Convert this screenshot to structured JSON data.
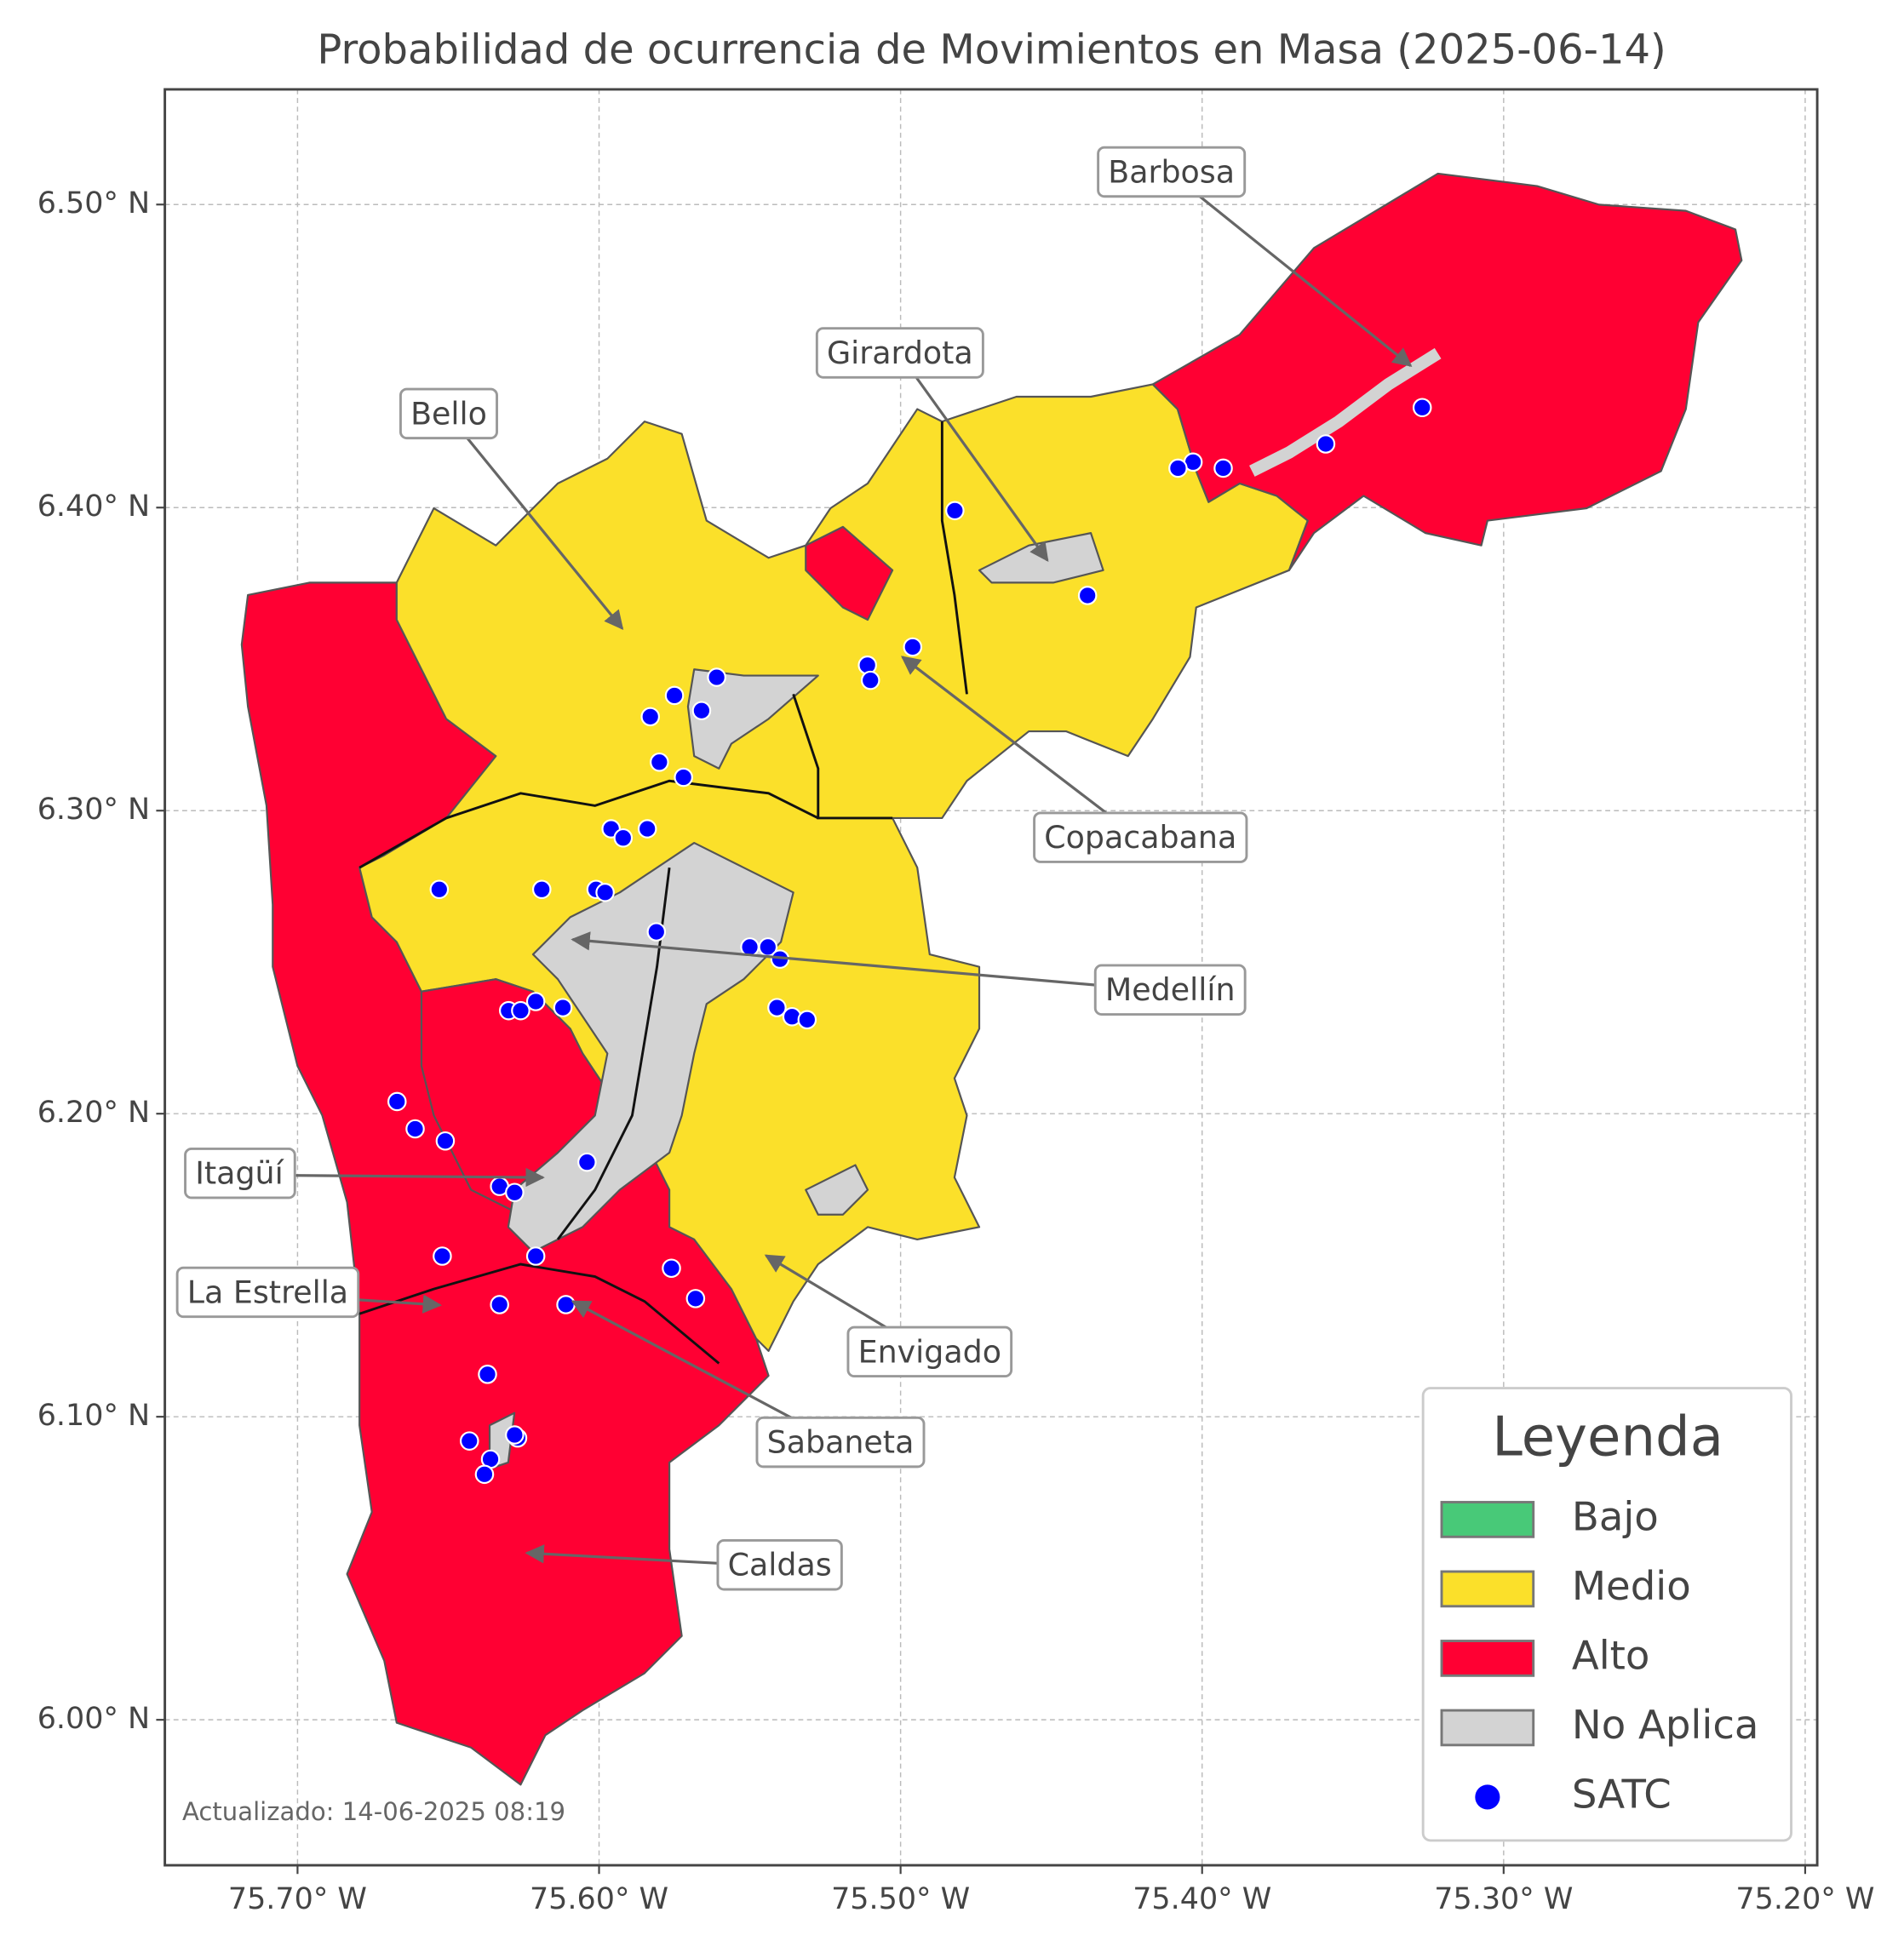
{
  "title": "Probabilidad de ocurrencia de Movimientos en Masa (2025-06-14)",
  "xlim": [
    -75.744,
    -75.196
  ],
  "ylim": [
    5.952,
    6.538
  ],
  "xticks": [
    {
      "value": -75.7,
      "label": "75.70° W"
    },
    {
      "value": -75.6,
      "label": "75.60° W"
    },
    {
      "value": -75.5,
      "label": "75.50° W"
    },
    {
      "value": -75.4,
      "label": "75.40° W"
    },
    {
      "value": -75.3,
      "label": "75.30° W"
    },
    {
      "value": -75.2,
      "label": "75.20° W"
    }
  ],
  "yticks": [
    {
      "value": 6.0,
      "label": "6.00° N"
    },
    {
      "value": 6.1,
      "label": "6.10° N"
    },
    {
      "value": 6.2,
      "label": "6.20° N"
    },
    {
      "value": 6.3,
      "label": "6.30° N"
    },
    {
      "value": 6.4,
      "label": "6.40° N"
    },
    {
      "value": 6.5,
      "label": "6.50° N"
    }
  ],
  "grid": true,
  "annotations": [
    "Barbosa",
    "Girardota",
    "Bello",
    "Copacabana",
    "Medellín",
    "Itagüí",
    "La Estrella",
    "Envigado",
    "Sabaneta",
    "Caldas"
  ],
  "legend": {
    "title": "Leyenda",
    "entries": [
      {
        "name": "Bajo",
        "color": "#48c978"
      },
      {
        "name": "Medio",
        "color": "#fbe02a"
      },
      {
        "name": "Alto",
        "color": "#ff0033"
      },
      {
        "name": "No Aplica",
        "color": "#d3d3d3"
      },
      {
        "name": "SATC",
        "color": "#0000ff"
      }
    ]
  },
  "stations": {
    "lon": [
      -75.327,
      -75.359,
      -75.393,
      -75.403,
      -75.408,
      -75.482,
      -75.438,
      -75.496,
      -75.511,
      -75.51,
      -75.561,
      -75.575,
      -75.566,
      -75.583,
      -75.58,
      -75.572,
      -75.596,
      -75.592,
      -75.584,
      -75.653,
      -75.619,
      -75.601,
      -75.598,
      -75.581,
      -75.55,
      -75.544,
      -75.54,
      -75.541,
      -75.536,
      -75.531,
      -75.621,
      -75.612,
      -75.63,
      -75.626,
      -75.667,
      -75.661,
      -75.651,
      -75.604,
      -75.633,
      -75.628,
      -75.652,
      -75.621,
      -75.576,
      -75.568,
      -75.633,
      -75.611,
      -75.637,
      -75.643,
      -75.627,
      -75.628,
      -75.636,
      -75.638
    ],
    "lat": [
      6.433,
      6.421,
      6.413,
      6.415,
      6.413,
      6.399,
      6.371,
      6.354,
      6.348,
      6.343,
      6.344,
      6.338,
      6.333,
      6.331,
      6.316,
      6.311,
      6.294,
      6.291,
      6.294,
      6.274,
      6.274,
      6.274,
      6.273,
      6.26,
      6.255,
      6.255,
      6.251,
      6.235,
      6.232,
      6.231,
      6.237,
      6.235,
      6.234,
      6.234,
      6.204,
      6.195,
      6.191,
      6.184,
      6.176,
      6.174,
      6.153,
      6.153,
      6.149,
      6.139,
      6.137,
      6.137,
      6.114,
      6.092,
      6.093,
      6.094,
      6.086,
      6.081
    ]
  },
  "updated": "Actualizado: 14-06-2025 08:19"
}
